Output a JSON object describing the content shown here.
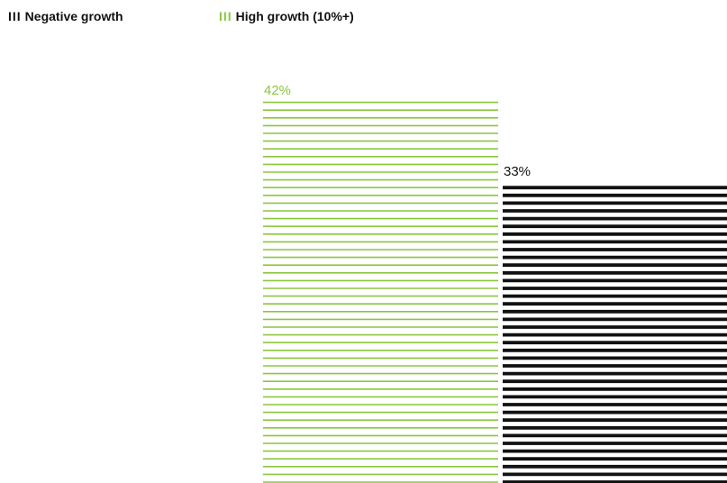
{
  "legend": [
    {
      "label": "Negative growth",
      "swatch": "III",
      "color": "#111111"
    },
    {
      "label": "High growth (10%+)",
      "swatch": "III",
      "color": "#8cc63f"
    }
  ],
  "chart_data": {
    "type": "bar",
    "series": [
      {
        "name": "High growth (10%+)",
        "value": 42,
        "label": "42%",
        "color": "#8cc63f"
      },
      {
        "name": "Negative growth",
        "value": 33,
        "label": "33%",
        "color": "#111111"
      }
    ],
    "title": "",
    "xlabel": "",
    "ylabel": "",
    "unit": "%",
    "grid": false,
    "legend_position": "top-left"
  }
}
